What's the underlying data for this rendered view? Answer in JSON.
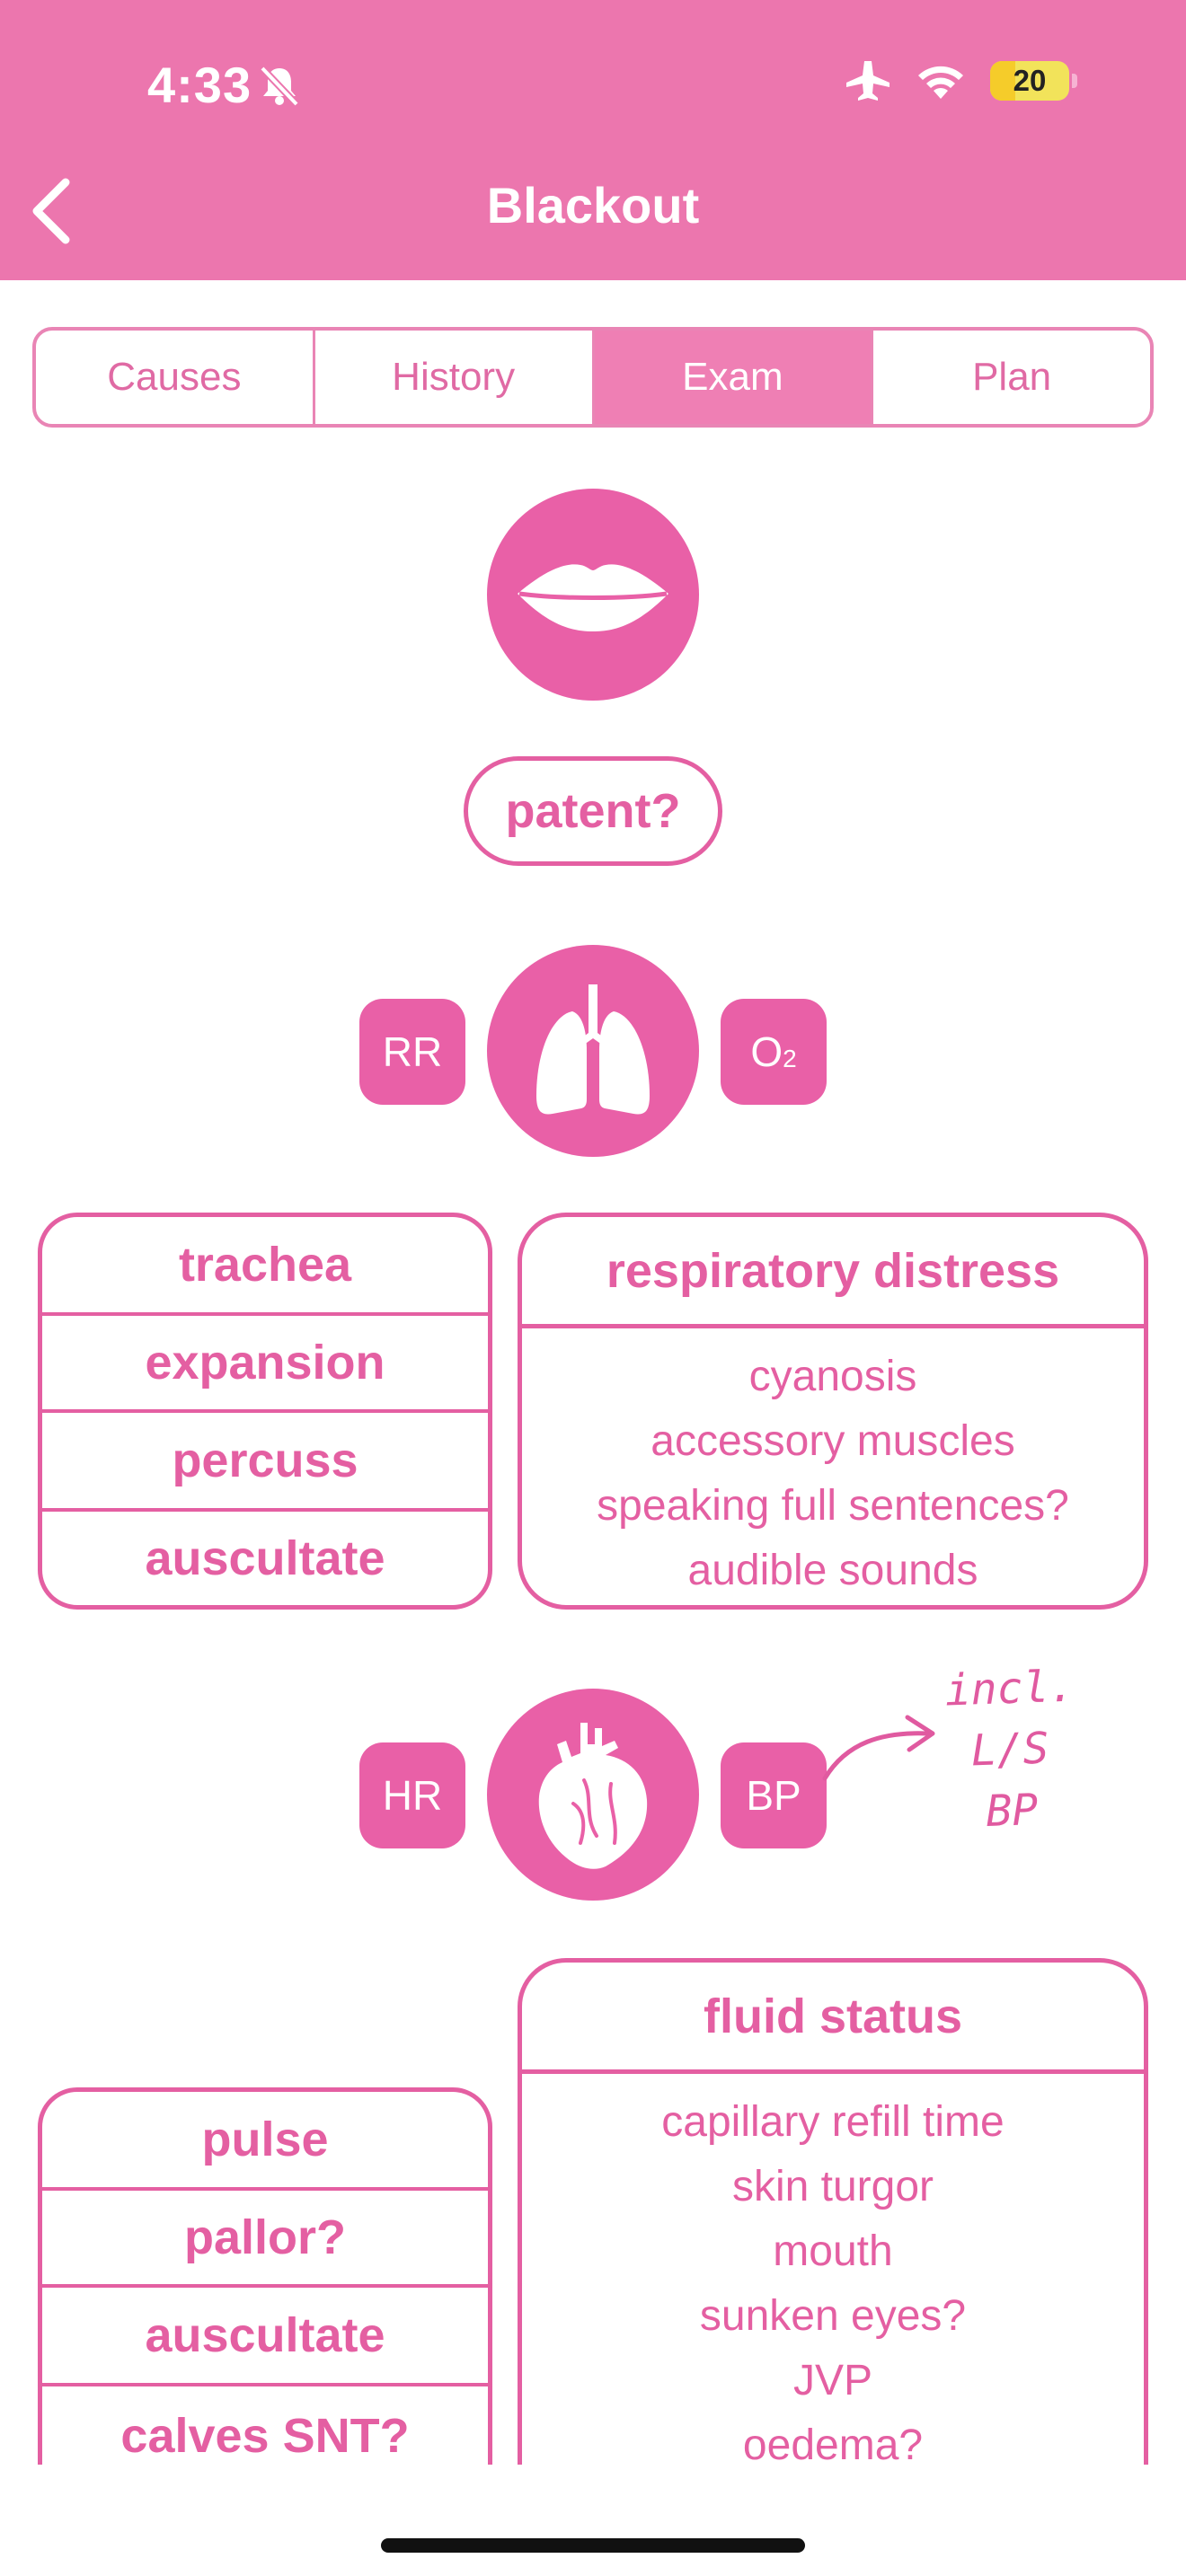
{
  "status_bar": {
    "time": "4:33",
    "battery": "20"
  },
  "header": {
    "title": "Blackout"
  },
  "tabs": [
    {
      "label": "Causes"
    },
    {
      "label": "History"
    },
    {
      "label": "Exam"
    },
    {
      "label": "Plan"
    }
  ],
  "airway": {
    "question": "patent?"
  },
  "breathing": {
    "left_tag": "RR",
    "right_tag": "O",
    "right_tag_sub": "2",
    "exam_rows": [
      "trachea",
      "expansion",
      "percuss",
      "auscultate"
    ],
    "box": {
      "title": "respiratory distress",
      "lines": [
        "cyanosis",
        "accessory muscles",
        "speaking full sentences?",
        "audible sounds"
      ]
    }
  },
  "circulation": {
    "left_tag": "HR",
    "right_tag": "BP",
    "note_lines": [
      "incl.",
      "L/S",
      "BP"
    ],
    "exam_rows": [
      "pulse",
      "pallor?",
      "auscultate",
      "calves SNT?"
    ],
    "box": {
      "title": "fluid status",
      "lines": [
        "capillary refill time",
        "skin turgor",
        "mouth",
        "sunken eyes?",
        "JVP",
        "oedema?"
      ]
    }
  },
  "colors": {
    "accent": "#e960a7",
    "header": "#ec76ae"
  }
}
